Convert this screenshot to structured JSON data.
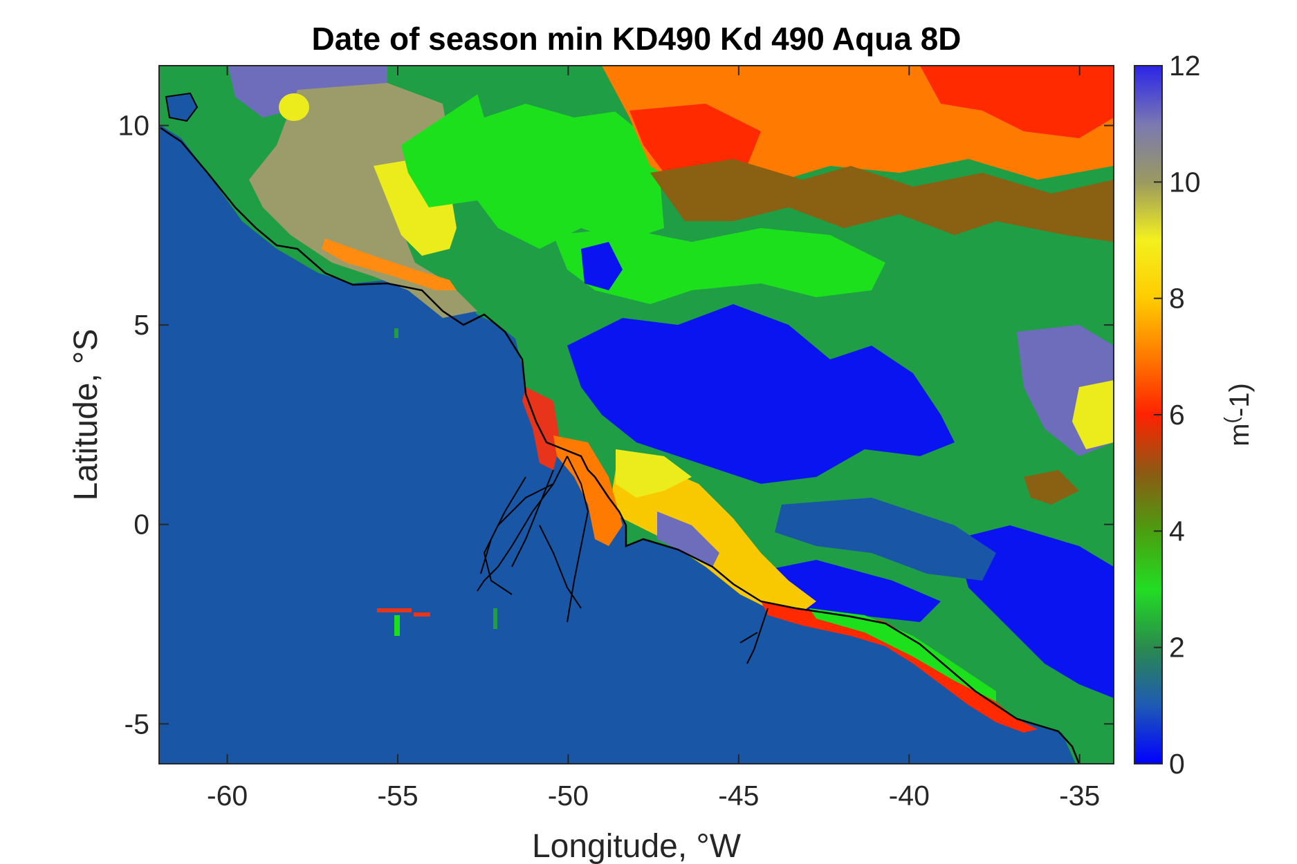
{
  "title": "Date of season min KD490 Kd 490 Aqua 8D",
  "xlabel": "Longitude, °W",
  "ylabel": "Latitude, °S",
  "colorbar": {
    "label_main": "m",
    "label_sup": "(",
    "label_rest": "-1)",
    "ticks": [
      "0",
      "2",
      "4",
      "6",
      "8",
      "10",
      "12"
    ],
    "range": [
      0,
      12
    ],
    "stops": [
      "#0000ff",
      "#1f5ab4",
      "#2a8a4e",
      "#22dd22",
      "#4b9e10",
      "#8c5a14",
      "#ff2200",
      "#ff7a00",
      "#ffcc00",
      "#f4f01e",
      "#9a9a60",
      "#7a78b2",
      "#2a24e8"
    ]
  },
  "x_ticks": [
    {
      "value": -60,
      "label": "-60"
    },
    {
      "value": -55,
      "label": "-55"
    },
    {
      "value": -50,
      "label": "-50"
    },
    {
      "value": -45,
      "label": "-45"
    },
    {
      "value": -40,
      "label": "-40"
    },
    {
      "value": -35,
      "label": "-35"
    }
  ],
  "y_ticks": [
    {
      "value": 10,
      "label": "10"
    },
    {
      "value": 5,
      "label": "5"
    },
    {
      "value": 0,
      "label": "0"
    },
    {
      "value": -5,
      "label": "-5"
    }
  ],
  "xlim": [
    -62,
    -34
  ],
  "ylim": [
    -6,
    11.5
  ],
  "colors": {
    "ocean": "#1a56a6",
    "coastline": "#000000",
    "deep_blue": "#0a14f0",
    "periwinkle": "#6d6dbb",
    "olive": "#9c9c6a",
    "yellow": "#ecec1c",
    "green": "#1de01d",
    "mid_green": "#1f9e46",
    "dark_olive": "#8a6012",
    "red": "#ff2a00",
    "orange": "#ff7a00",
    "gold": "#f8c800"
  }
}
